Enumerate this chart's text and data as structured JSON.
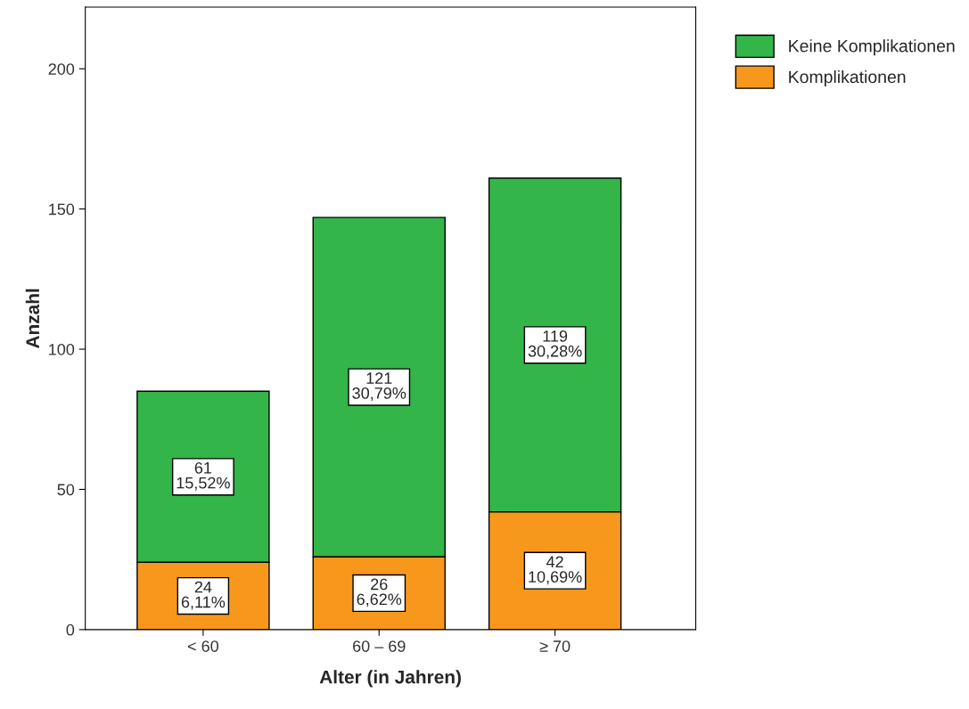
{
  "chart_data": {
    "type": "bar",
    "stacked": true,
    "xlabel": "Alter (in Jahren)",
    "ylabel": "Anzahl",
    "categories": [
      "< 60",
      "60 – 69",
      "≥ 70"
    ],
    "series": [
      {
        "name": "Komplikationen",
        "color": "#f7981d",
        "values": [
          24,
          26,
          42
        ],
        "value_labels": [
          "24\n6,11%",
          "26\n6,62%",
          "42\n10,69%"
        ]
      },
      {
        "name": "Keine Komplikationen",
        "color": "#33b54a",
        "values": [
          61,
          121,
          119
        ],
        "value_labels": [
          "61\n15,52%",
          "121\n30,79%",
          "119\n30,28%"
        ]
      }
    ],
    "ylim": [
      0,
      222
    ],
    "yticks": [
      0,
      50,
      100,
      150,
      200
    ],
    "grid": false,
    "legend": "top right"
  }
}
